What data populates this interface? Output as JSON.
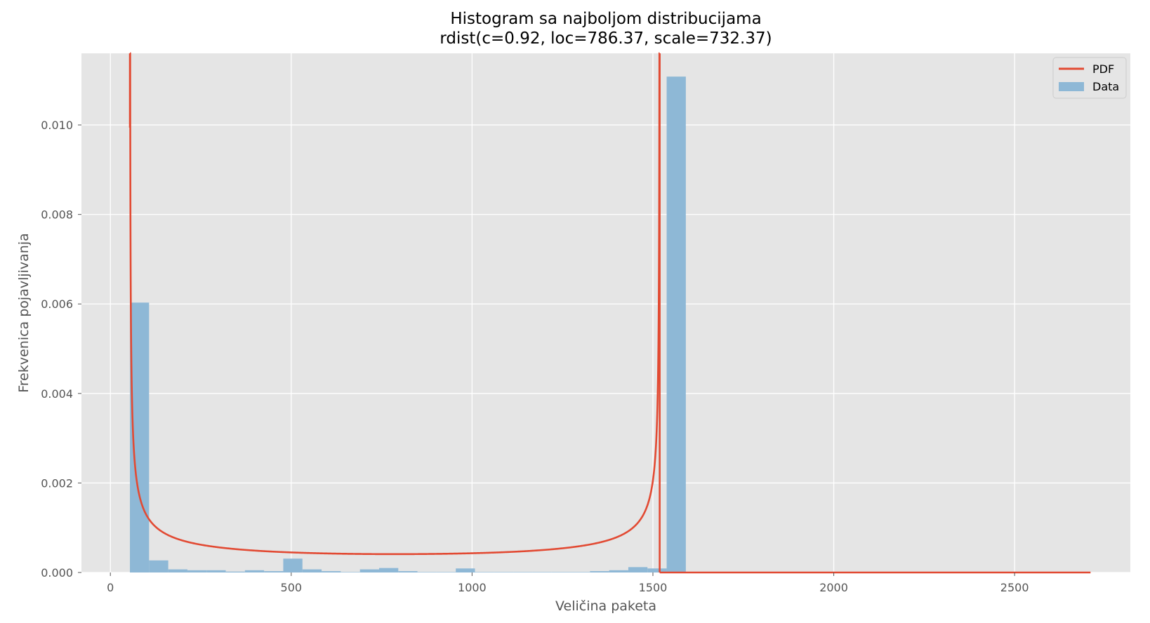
{
  "chart_data": {
    "type": "bar",
    "title": "Histogram sa najboljom distribucijama",
    "subtitle": "rdist(c=0.92, loc=786.37, scale=732.37)",
    "xlabel": "Veličina paketa",
    "ylabel": "Frekvenica pojavljivanja",
    "xlim": [
      -80,
      2820
    ],
    "ylim": [
      0,
      0.0116
    ],
    "x_ticks": [
      0,
      500,
      1000,
      1500,
      2000,
      2500
    ],
    "x_tick_labels": [
      "0",
      "500",
      "1000",
      "1500",
      "2000",
      "2500"
    ],
    "y_ticks": [
      0,
      0.002,
      0.004,
      0.006,
      0.008,
      0.01
    ],
    "y_tick_labels": [
      "0.000",
      "0.002",
      "0.004",
      "0.006",
      "0.008",
      "0.010"
    ],
    "grid": true,
    "legend_position": "top-right",
    "legend": [
      {
        "label": "PDF",
        "kind": "line",
        "color": "#e24a33"
      },
      {
        "label": "Data",
        "kind": "patch",
        "color": "#8eb8d6"
      }
    ],
    "histogram": {
      "name": "Data",
      "color": "#8eb8d6",
      "bin_start": 54,
      "bin_width": 53,
      "values": [
        0.00603,
        0.00027,
        7e-05,
        5e-05,
        5e-05,
        2e-05,
        5e-05,
        3e-05,
        0.00031,
        7e-05,
        3e-05,
        1e-05,
        7e-05,
        0.0001,
        3e-05,
        1e-05,
        1e-05,
        9e-05,
        1e-05,
        1e-05,
        1e-05,
        1e-05,
        1e-05,
        1e-05,
        3e-05,
        5e-05,
        0.00012,
        9e-05,
        0.01108
      ]
    },
    "pdf": {
      "name": "PDF",
      "color": "#e24a33",
      "distribution": "rdist",
      "c": 0.92,
      "loc": 786.37,
      "scale": 732.37,
      "x_max": 2710
    },
    "colors": {
      "plot_background": "#e5e5e5",
      "grid": "#ffffff",
      "axis_text": "#555555"
    }
  }
}
